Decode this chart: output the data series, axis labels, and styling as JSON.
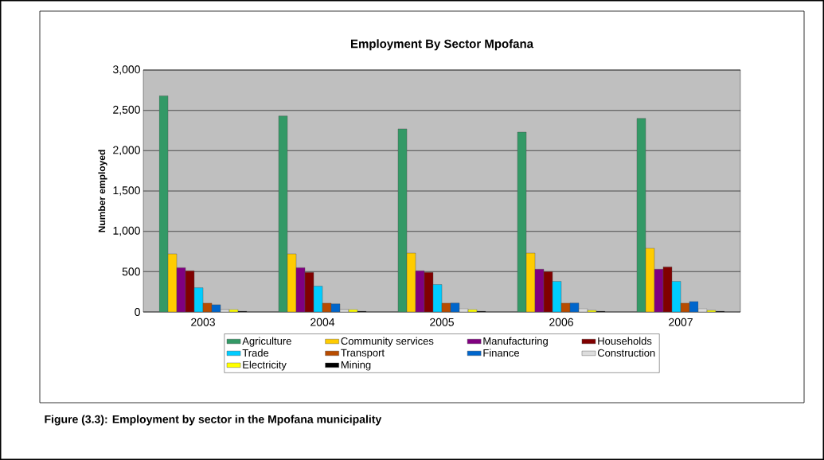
{
  "chart_data": {
    "type": "bar",
    "title": "Employment By Sector Mpofana",
    "ylabel": "Number employed",
    "categories": [
      "2003",
      "2004",
      "2005",
      "2006",
      "2007"
    ],
    "series": [
      {
        "name": "Agriculture",
        "color": "#339966",
        "values": [
          2680,
          2430,
          2270,
          2230,
          2400
        ]
      },
      {
        "name": "Community services",
        "color": "#ffcc00",
        "values": [
          720,
          720,
          730,
          730,
          790
        ]
      },
      {
        "name": "Manufacturing",
        "color": "#800080",
        "values": [
          550,
          550,
          510,
          530,
          530
        ]
      },
      {
        "name": "Households",
        "color": "#800000",
        "values": [
          510,
          490,
          490,
          500,
          560
        ]
      },
      {
        "name": "Trade",
        "color": "#00ccff",
        "values": [
          300,
          320,
          340,
          380,
          380
        ]
      },
      {
        "name": "Transport",
        "color": "#b84c00",
        "values": [
          110,
          110,
          110,
          110,
          110
        ]
      },
      {
        "name": "Finance",
        "color": "#0066cc",
        "values": [
          90,
          100,
          110,
          110,
          130
        ]
      },
      {
        "name": "Construction",
        "color": "#dddddd",
        "values": [
          30,
          30,
          40,
          40,
          40
        ]
      },
      {
        "name": "Electricity",
        "color": "#ffff00",
        "values": [
          30,
          30,
          30,
          20,
          20
        ]
      },
      {
        "name": "Mining",
        "color": "#000000",
        "values": [
          10,
          10,
          10,
          10,
          10
        ]
      }
    ],
    "ylim": [
      0,
      3000
    ],
    "yticks": [
      {
        "value": 0,
        "label": "0"
      },
      {
        "value": 500,
        "label": "500"
      },
      {
        "value": 1000,
        "label": "1,000"
      },
      {
        "value": 1500,
        "label": "1,500"
      },
      {
        "value": 2000,
        "label": "2,000"
      },
      {
        "value": 2500,
        "label": "2,500"
      },
      {
        "value": 3000,
        "label": "3,000"
      }
    ],
    "grid": "y",
    "legend": "bottom",
    "annotations": [
      "**Figure (3.3): Employment by sector in the Mpofana municipality**"
    ]
  }
}
